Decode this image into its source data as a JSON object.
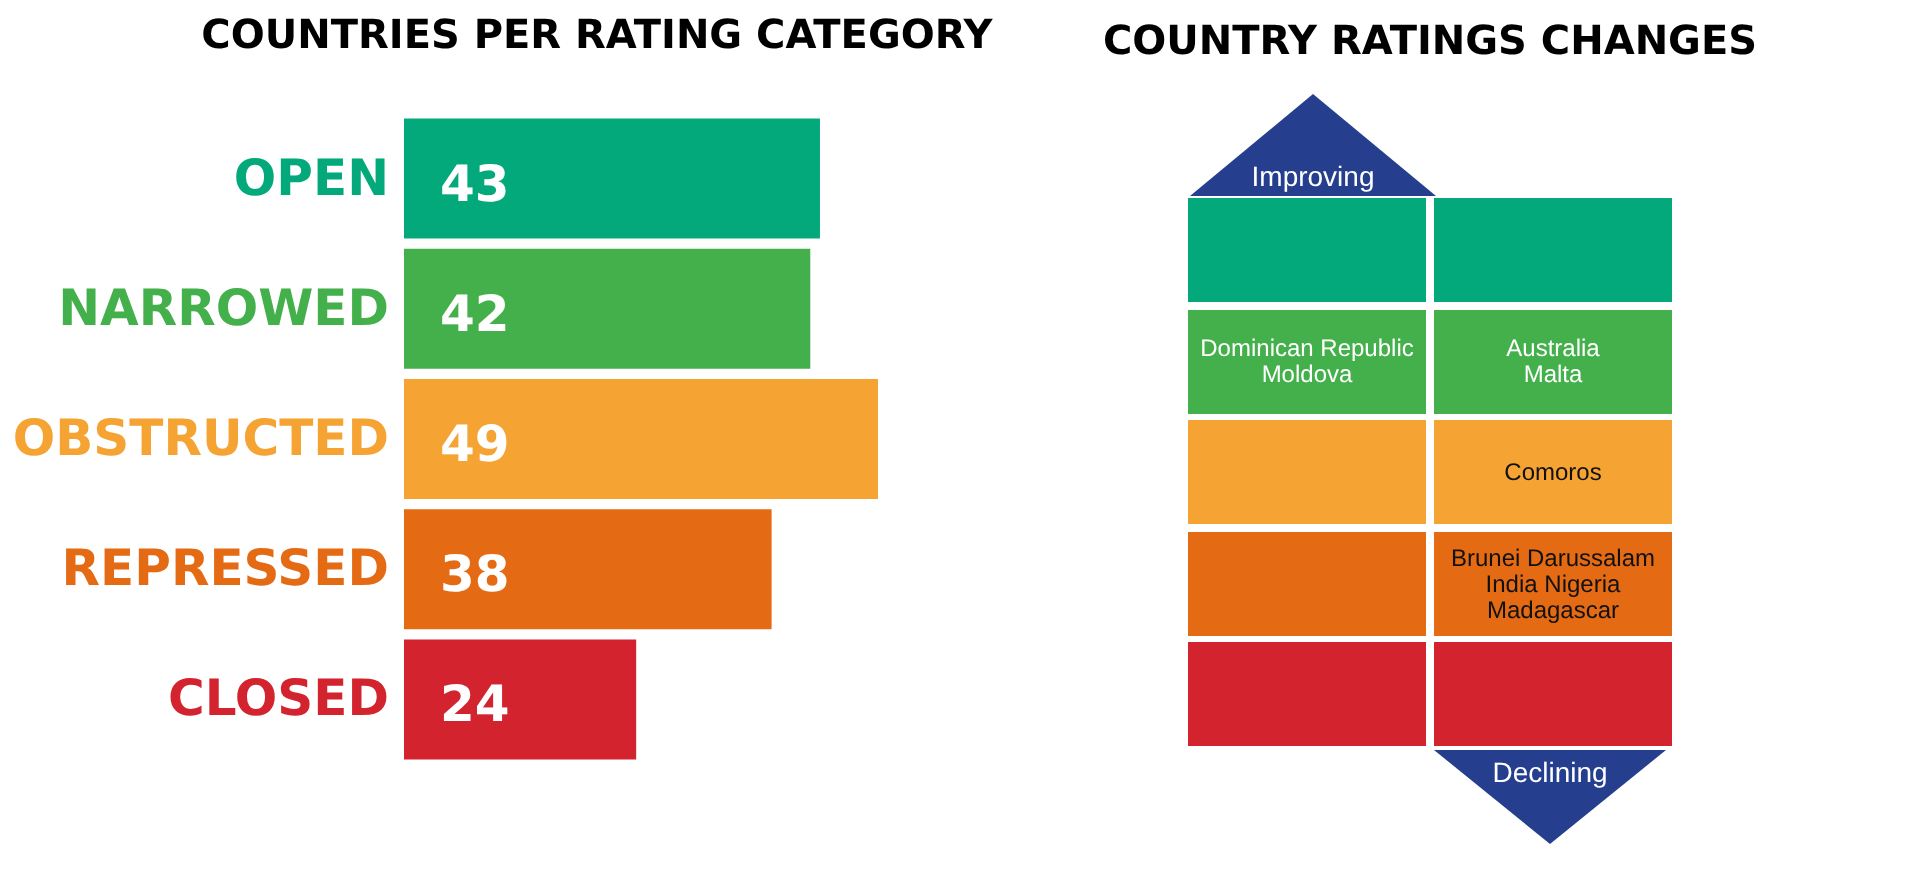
{
  "chart_data": [
    {
      "type": "bar",
      "title": "COUNTRIES PER RATING CATEGORY",
      "orientation": "horizontal",
      "categories": [
        "OPEN",
        "NARROWED",
        "OBSTRUCTED",
        "REPRESSED",
        "CLOSED"
      ],
      "values": [
        43,
        42,
        49,
        38,
        24
      ],
      "colors": [
        "#03a97b",
        "#44b04b",
        "#f5a333",
        "#e46b14",
        "#d3232e"
      ],
      "data_labels": true
    },
    {
      "type": "other",
      "title": "COUNTRY RATINGS CHANGES",
      "annotations": [
        "Improving",
        "Dominican Republic\nMoldova",
        "Australia\nMalta",
        "Comoros",
        "Brunei Darussalam\nIndia Nigeria\nMadagascar",
        "Declining"
      ]
    }
  ]
}
